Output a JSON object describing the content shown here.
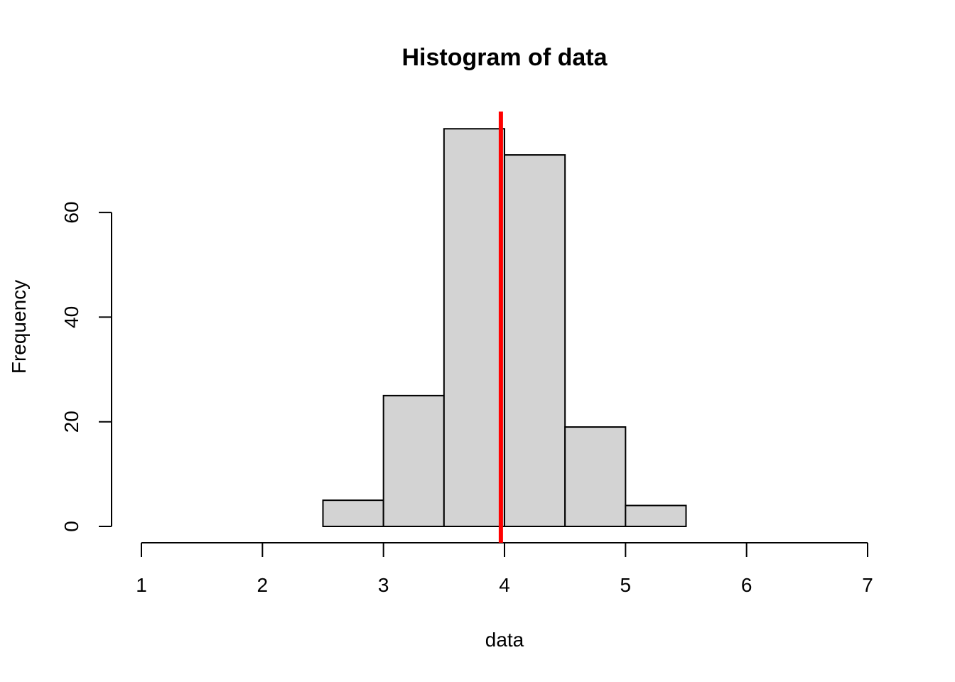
{
  "chart_data": {
    "type": "bar",
    "title": "Histogram of data",
    "xlabel": "data",
    "ylabel": "Frequency",
    "xlim": [
      1,
      7
    ],
    "ylim": [
      0,
      80
    ],
    "x_ticks": [
      "1",
      "2",
      "3",
      "4",
      "5",
      "6",
      "7"
    ],
    "y_ticks": [
      "0",
      "20",
      "40",
      "60"
    ],
    "bins": [
      {
        "from": 2.5,
        "to": 3.0,
        "count": 5
      },
      {
        "from": 3.0,
        "to": 3.5,
        "count": 25
      },
      {
        "from": 3.5,
        "to": 4.0,
        "count": 76
      },
      {
        "from": 4.0,
        "to": 4.5,
        "count": 71
      },
      {
        "from": 4.5,
        "to": 5.0,
        "count": 19
      },
      {
        "from": 5.0,
        "to": 5.5,
        "count": 4
      }
    ],
    "vline": {
      "x": 3.97,
      "color": "#ff0000"
    },
    "bar_fill": "#d3d3d3",
    "grid": false,
    "legend": "none"
  }
}
